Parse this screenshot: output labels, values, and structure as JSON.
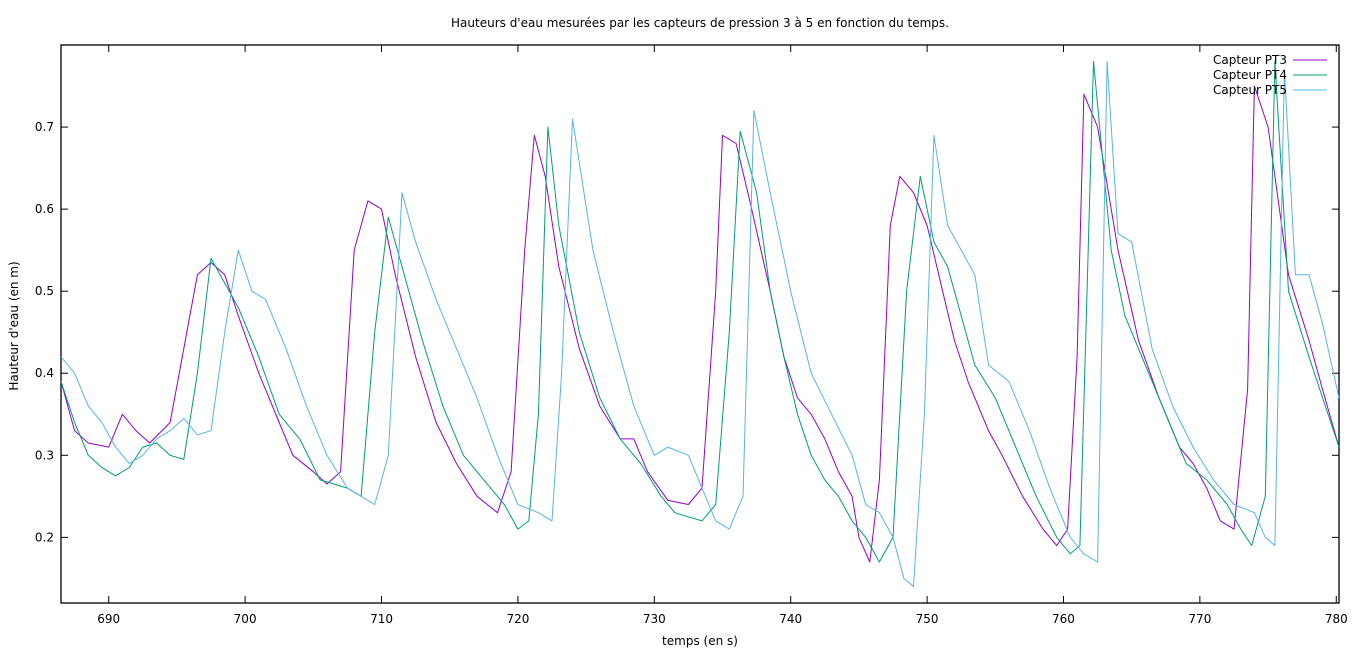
{
  "chart_data": {
    "type": "line",
    "title": "Hauteurs d'eau mesurées par les capteurs de pression 3 à 5 en fonction du temps.",
    "xlabel": "temps (en s)",
    "ylabel": "Hauteur d'eau (en m)",
    "xlim": [
      686.5,
      780.2
    ],
    "ylim": [
      0.12,
      0.8
    ],
    "xticks": [
      690,
      700,
      710,
      720,
      730,
      740,
      750,
      760,
      770,
      780
    ],
    "yticks": [
      0.2,
      0.3,
      0.4,
      0.5,
      0.6,
      0.7
    ],
    "ytick_labels": [
      "0.2",
      "0.3",
      "0.4",
      "0.5",
      "0.6",
      "0.7"
    ],
    "grid": false,
    "legend_position": "top-right",
    "series": [
      {
        "name": "Capteur PT3",
        "color": "#9400d3",
        "x": [
          686.5,
          687.5,
          688.5,
          690,
          691,
          692,
          693,
          694.5,
          695.5,
          696.5,
          697.5,
          698.5,
          699.5,
          701,
          702.5,
          703.5,
          705,
          706,
          707,
          708,
          709,
          710,
          711,
          712.5,
          714,
          715.5,
          717,
          718.5,
          719.5,
          720.5,
          721.2,
          722,
          723,
          724.5,
          726,
          727.5,
          728.5,
          729.5,
          731,
          732.5,
          733.5,
          734.5,
          735,
          736,
          737,
          738.5,
          739.5,
          740.5,
          741.5,
          742.5,
          743.5,
          744.5,
          745,
          745.8,
          746.5,
          747.3,
          748,
          749,
          750,
          751,
          752,
          753,
          754.5,
          755.5,
          757,
          758.5,
          759.5,
          760.3,
          761,
          761.5,
          762.5,
          764,
          765.5,
          767,
          768.5,
          769.5,
          770.5,
          771.5,
          772.5,
          773.5,
          774,
          775,
          776.5,
          778,
          779,
          780.2
        ],
        "y": [
          0.39,
          0.33,
          0.315,
          0.31,
          0.35,
          0.33,
          0.315,
          0.34,
          0.43,
          0.52,
          0.535,
          0.52,
          0.47,
          0.4,
          0.34,
          0.3,
          0.28,
          0.265,
          0.28,
          0.55,
          0.61,
          0.6,
          0.52,
          0.42,
          0.34,
          0.29,
          0.25,
          0.23,
          0.28,
          0.55,
          0.69,
          0.64,
          0.53,
          0.43,
          0.36,
          0.32,
          0.32,
          0.28,
          0.245,
          0.24,
          0.26,
          0.5,
          0.69,
          0.68,
          0.61,
          0.5,
          0.42,
          0.37,
          0.35,
          0.32,
          0.28,
          0.25,
          0.2,
          0.17,
          0.27,
          0.58,
          0.64,
          0.62,
          0.58,
          0.51,
          0.44,
          0.39,
          0.33,
          0.3,
          0.25,
          0.21,
          0.19,
          0.21,
          0.42,
          0.74,
          0.7,
          0.55,
          0.44,
          0.37,
          0.31,
          0.29,
          0.26,
          0.22,
          0.21,
          0.38,
          0.75,
          0.7,
          0.52,
          0.44,
          0.38,
          0.31
        ]
      },
      {
        "name": "Capteur PT4",
        "color": "#009e73",
        "x": [
          686.5,
          687.5,
          688.5,
          689.5,
          690.5,
          691.5,
          692.5,
          693.5,
          694.5,
          695.5,
          696.5,
          697.5,
          698.5,
          699.5,
          701,
          702.5,
          704,
          705.5,
          706.5,
          707.5,
          708.5,
          709.5,
          710.5,
          711.5,
          713,
          714.5,
          716,
          717.5,
          719,
          720,
          720.8,
          721.5,
          722.2,
          723,
          724.5,
          726,
          727.5,
          729,
          730.5,
          731.5,
          732.5,
          733.5,
          734.5,
          735.5,
          736.3,
          737.5,
          738.5,
          739.5,
          740.5,
          741.5,
          742.5,
          743.5,
          744.5,
          745.5,
          746.5,
          747.5,
          748.5,
          749.5,
          750.5,
          751.5,
          752.5,
          753.5,
          755,
          756.5,
          758,
          759.5,
          760.5,
          761.2,
          762.2,
          763.5,
          764.5,
          766,
          767.5,
          769,
          770.5,
          772,
          773,
          773.8,
          774.8,
          775.5,
          776.5,
          778,
          779,
          780.2
        ],
        "y": [
          0.39,
          0.34,
          0.3,
          0.285,
          0.275,
          0.285,
          0.31,
          0.315,
          0.3,
          0.295,
          0.4,
          0.54,
          0.51,
          0.48,
          0.42,
          0.35,
          0.32,
          0.27,
          0.265,
          0.26,
          0.25,
          0.45,
          0.59,
          0.53,
          0.44,
          0.36,
          0.3,
          0.27,
          0.24,
          0.21,
          0.22,
          0.35,
          0.7,
          0.58,
          0.45,
          0.37,
          0.32,
          0.29,
          0.25,
          0.23,
          0.225,
          0.22,
          0.24,
          0.45,
          0.695,
          0.62,
          0.5,
          0.42,
          0.35,
          0.3,
          0.27,
          0.25,
          0.22,
          0.2,
          0.17,
          0.2,
          0.5,
          0.64,
          0.56,
          0.53,
          0.47,
          0.41,
          0.37,
          0.31,
          0.25,
          0.2,
          0.18,
          0.19,
          0.78,
          0.55,
          0.47,
          0.41,
          0.35,
          0.29,
          0.27,
          0.24,
          0.21,
          0.19,
          0.25,
          0.78,
          0.5,
          0.42,
          0.37,
          0.31
        ]
      },
      {
        "name": "Capteur PT5",
        "color": "#56b4e9",
        "x": [
          686.5,
          687.5,
          688.5,
          689.5,
          690.5,
          691.5,
          692.5,
          693.5,
          694.5,
          695.5,
          696.5,
          697.5,
          698.5,
          699.5,
          700.5,
          701.5,
          703,
          704.5,
          706,
          707.5,
          708.5,
          709.5,
          710.5,
          711.5,
          712.5,
          714,
          715.5,
          717,
          718.5,
          720,
          721.5,
          722.5,
          723.2,
          724,
          725.5,
          727,
          728.5,
          730,
          731,
          732.5,
          733.5,
          734.5,
          735.5,
          736.5,
          737.3,
          738.5,
          740,
          741.5,
          743,
          744.5,
          745.5,
          746.5,
          747.5,
          748.3,
          749,
          749.8,
          750.5,
          751.5,
          752.5,
          753.5,
          754.5,
          756,
          757.5,
          759,
          760.5,
          761.5,
          762.5,
          763.2,
          764,
          765,
          766.5,
          768,
          769.5,
          771,
          772.5,
          774,
          774.8,
          775.5,
          776.2,
          777,
          778,
          779,
          780.2
        ],
        "y": [
          0.42,
          0.4,
          0.36,
          0.34,
          0.31,
          0.29,
          0.3,
          0.32,
          0.33,
          0.345,
          0.325,
          0.33,
          0.45,
          0.55,
          0.5,
          0.49,
          0.43,
          0.36,
          0.3,
          0.26,
          0.25,
          0.24,
          0.3,
          0.62,
          0.56,
          0.49,
          0.43,
          0.37,
          0.3,
          0.24,
          0.23,
          0.22,
          0.4,
          0.71,
          0.55,
          0.45,
          0.36,
          0.3,
          0.31,
          0.3,
          0.26,
          0.22,
          0.21,
          0.25,
          0.72,
          0.62,
          0.5,
          0.4,
          0.35,
          0.3,
          0.24,
          0.23,
          0.2,
          0.15,
          0.14,
          0.35,
          0.69,
          0.58,
          0.55,
          0.52,
          0.41,
          0.39,
          0.33,
          0.26,
          0.2,
          0.18,
          0.17,
          0.78,
          0.57,
          0.56,
          0.43,
          0.36,
          0.31,
          0.27,
          0.24,
          0.23,
          0.2,
          0.19,
          0.77,
          0.52,
          0.52,
          0.46,
          0.37
        ]
      }
    ]
  }
}
